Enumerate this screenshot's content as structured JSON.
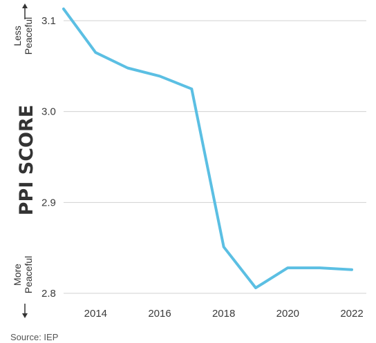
{
  "chart_data": {
    "type": "line",
    "title": "",
    "ylabel": "PPI SCORE",
    "xlabel": "",
    "x": [
      2013,
      2014,
      2015,
      2016,
      2017,
      2018,
      2019,
      2020,
      2021,
      2022
    ],
    "series": [
      {
        "values": [
          3.113,
          3.065,
          3.048,
          3.039,
          3.025,
          2.851,
          2.806,
          2.828,
          2.828,
          2.826
        ]
      }
    ],
    "xticks": [
      "2014",
      "2016",
      "2018",
      "2020",
      "2022"
    ],
    "yticks": [
      "3.1",
      "3.0",
      "2.9",
      "2.8"
    ],
    "ylim": [
      2.8,
      3.1
    ],
    "xlim": [
      2013,
      2022
    ],
    "grid": "horizontal",
    "top_annotation": [
      "Less",
      "Peaceful"
    ],
    "bottom_annotation": [
      "More",
      "Peaceful"
    ],
    "line_color": "#5bbfe3",
    "grid_color": "#d0d0d0"
  },
  "source": "Source: IEP"
}
